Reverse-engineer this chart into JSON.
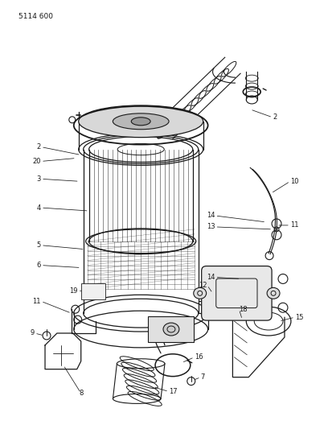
{
  "title": "5114 600",
  "bg_color": "#ffffff",
  "line_color": "#1a1a1a",
  "label_color": "#1a1a1a",
  "fig_width": 4.08,
  "fig_height": 5.33,
  "dpi": 100,
  "label_fs": 6.0
}
